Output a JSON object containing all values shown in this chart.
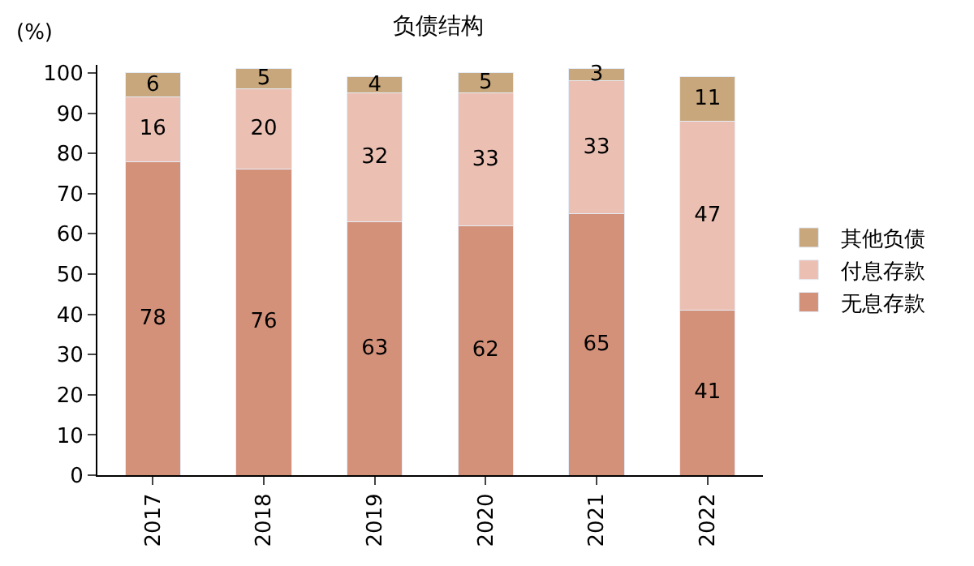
{
  "chart_data": {
    "type": "bar",
    "title": "负债结构",
    "ylabel": "(%)",
    "stacked": true,
    "data_labels": true,
    "legend": "right",
    "categories": [
      "2017",
      "2018",
      "2019",
      "2020",
      "2021",
      "2022"
    ],
    "ylim": [
      0,
      102
    ],
    "yticks": [
      0,
      10,
      20,
      30,
      40,
      50,
      60,
      70,
      80,
      90,
      100
    ],
    "series": [
      {
        "name": "无息存款",
        "color": "#d4917a",
        "values": [
          78,
          76,
          63,
          62,
          65,
          41
        ]
      },
      {
        "name": "付息存款",
        "color": "#ebc0b3",
        "values": [
          16,
          20,
          32,
          33,
          33,
          47
        ]
      },
      {
        "name": "其他负债",
        "color": "#c9a77c",
        "values": [
          6,
          5,
          4,
          5,
          3,
          11
        ]
      }
    ]
  }
}
